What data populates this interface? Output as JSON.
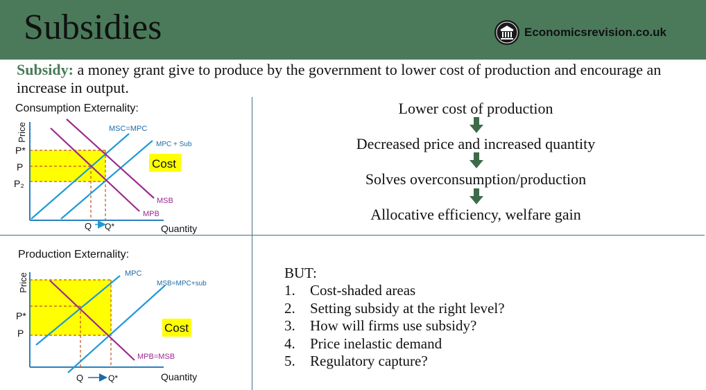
{
  "header": {
    "title": "Subsidies",
    "brand": "Economicsrevision.co.uk",
    "color": "#4a7a5a"
  },
  "definition": {
    "term": "Subsidy:",
    "text": " a money grant give to produce by the government to lower cost of production and encourage an increase in output."
  },
  "consumption": {
    "section_label": "Consumption Externality:",
    "y_axis": "Price",
    "x_axis": "Quantity",
    "labels": {
      "msc_mpc": "MSC=MPC",
      "mpc_sub": "MPC + Sub",
      "msb": "MSB",
      "mpb": "MPB",
      "cost": "Cost",
      "p_star": "P*",
      "p": "P",
      "p2": "P₂",
      "q": "Q",
      "q_star": "Q*"
    }
  },
  "production": {
    "section_label": "Production Externality:",
    "y_axis": "Price",
    "x_axis": "Quantity",
    "labels": {
      "mpc": "MPC",
      "msb_mpc_sub": "MSB=MPC+sub",
      "mpb_msb": "MPB=MSB",
      "cost": "Cost",
      "p_star": "P*",
      "p": "P",
      "q": "Q",
      "q_star": "Q*"
    }
  },
  "chain": [
    "Lower cost of production",
    "Decreased price and increased quantity",
    "Solves overconsumption/production",
    "Allocative efficiency, welfare gain"
  ],
  "but": {
    "heading": "BUT:",
    "items": [
      {
        "num": "1.",
        "text": "Cost-shaded areas"
      },
      {
        "num": "2.",
        "text": "Setting subsidy at the right level?"
      },
      {
        "num": "3.",
        "text": "How will firms use subsidy?"
      },
      {
        "num": "4.",
        "text": "Price inelastic demand"
      },
      {
        "num": "5.",
        "text": "Regulatory capture?"
      }
    ]
  },
  "colors": {
    "supply_line": "#1e9ad6",
    "demand_line": "#9b2a8f",
    "shade": "#ffff00",
    "guide": "#c05020",
    "arrow": "#3d6b4a",
    "divider": "#3f6f86"
  }
}
